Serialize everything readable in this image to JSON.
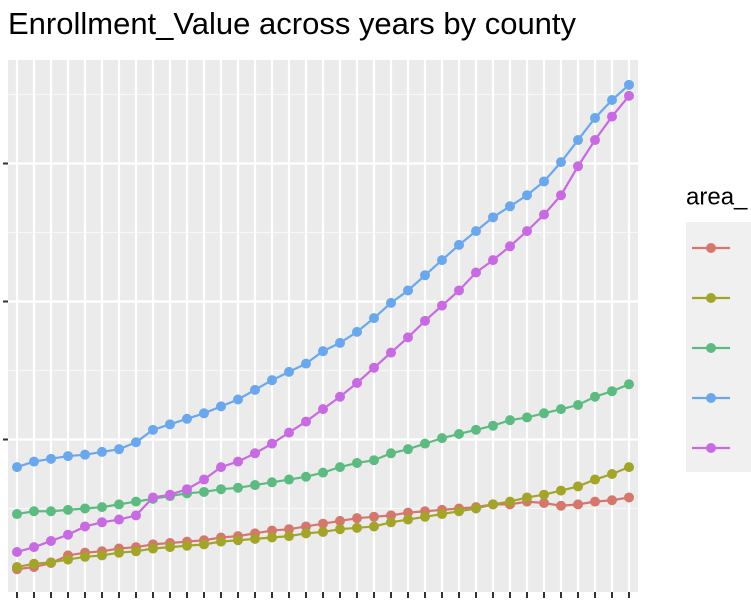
{
  "chart_data": {
    "type": "line",
    "title": "Enrollment_Value across years by county",
    "legend_title": "area_",
    "legend_position": "right",
    "grid": true,
    "categories": [
      null,
      null,
      null,
      null,
      null,
      null,
      null,
      null,
      null,
      null,
      null,
      null,
      null,
      null,
      null,
      null,
      null,
      null,
      null,
      null,
      null,
      null,
      null,
      null,
      null,
      null,
      null,
      null,
      null,
      null,
      null,
      null,
      null,
      null,
      null,
      null,
      null
    ],
    "ylim": [
      -1.05,
      37.5
    ],
    "yticks": [
      10,
      20,
      30
    ],
    "minor_yticks": [
      5,
      15,
      25,
      35
    ],
    "series": [
      {
        "color": "#d4776d",
        "values": [
          0.6,
          0.76,
          1.05,
          1.6,
          1.8,
          1.9,
          2.1,
          2.2,
          2.4,
          2.5,
          2.6,
          2.7,
          2.9,
          3.0,
          3.2,
          3.4,
          3.5,
          3.7,
          3.9,
          4.1,
          4.3,
          4.4,
          4.5,
          4.7,
          4.8,
          4.9,
          5.0,
          5.1,
          5.3,
          5.3,
          5.5,
          5.4,
          5.2,
          5.3,
          5.5,
          5.6,
          5.8
        ]
      },
      {
        "color": "#a3a42a",
        "values": [
          0.76,
          1.0,
          1.1,
          1.3,
          1.5,
          1.6,
          1.8,
          1.9,
          2.1,
          2.2,
          2.3,
          2.4,
          2.6,
          2.7,
          2.8,
          2.9,
          3.0,
          3.2,
          3.3,
          3.5,
          3.6,
          3.7,
          4.0,
          4.2,
          4.4,
          4.6,
          4.8,
          5.0,
          5.3,
          5.5,
          5.8,
          6.0,
          6.3,
          6.6,
          7.1,
          7.5,
          8.0
        ]
      },
      {
        "color": "#5dbb82",
        "values": [
          4.6,
          4.8,
          4.8,
          4.9,
          5.0,
          5.1,
          5.3,
          5.5,
          5.7,
          5.9,
          6.1,
          6.2,
          6.4,
          6.5,
          6.7,
          6.9,
          7.1,
          7.3,
          7.6,
          8.0,
          8.3,
          8.5,
          9.0,
          9.3,
          9.7,
          10.1,
          10.4,
          10.7,
          11.0,
          11.4,
          11.6,
          11.9,
          12.2,
          12.5,
          13.1,
          13.5,
          14.0
        ]
      },
      {
        "color": "#6aa7ec",
        "values": [
          8.0,
          8.4,
          8.6,
          8.8,
          8.9,
          9.1,
          9.3,
          9.8,
          10.7,
          11.1,
          11.5,
          11.9,
          12.4,
          12.9,
          13.6,
          14.3,
          14.9,
          15.5,
          16.4,
          17.0,
          17.8,
          18.8,
          19.9,
          20.8,
          21.9,
          23.0,
          24.1,
          25.1,
          26.1,
          26.9,
          27.7,
          28.7,
          30.1,
          31.7,
          33.3,
          34.6,
          35.7
        ]
      },
      {
        "color": "#c86ae2",
        "values": [
          1.85,
          2.2,
          2.65,
          3.1,
          3.7,
          4.0,
          4.2,
          4.5,
          5.8,
          6.0,
          6.4,
          7.1,
          8.0,
          8.4,
          9.0,
          9.7,
          10.5,
          11.3,
          12.2,
          13.1,
          14.1,
          15.2,
          16.3,
          17.4,
          18.6,
          19.7,
          20.8,
          22.1,
          23.0,
          24.0,
          25.1,
          26.3,
          27.7,
          29.8,
          31.7,
          33.4,
          34.9
        ]
      }
    ]
  }
}
